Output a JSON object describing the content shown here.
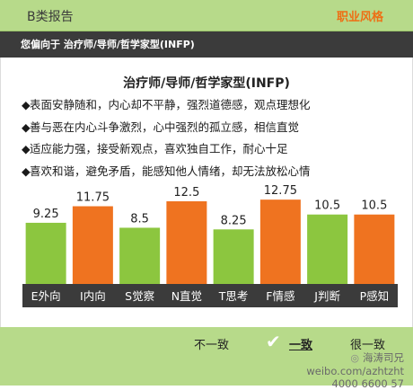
{
  "header": {
    "title": "B类报告",
    "style_link": "职业风格"
  },
  "subheader": {
    "text": "您偏向于 治疗师/导师/哲学家型(INFP)"
  },
  "content": {
    "heading": "治疗师/导师/哲学家型(INFP)",
    "traits": [
      "表面安静随和，内心却不平静，强烈道德感，观点理想化",
      "善与恶在内心斗争激烈，心中强烈的孤立感，相信直觉",
      "适应能力强，接受新观点，喜欢独自工作，耐心十足",
      "喜欢和谐，避免矛盾，能感知他人情绪，却无法放松心情"
    ]
  },
  "chart_data": {
    "type": "bar",
    "categories": [
      "E外向",
      "I内向",
      "S觉察",
      "N直觉",
      "T思考",
      "F情感",
      "J判断",
      "P感知"
    ],
    "values": [
      9.25,
      11.75,
      8.5,
      12.5,
      8.25,
      12.75,
      10.5,
      10.5
    ],
    "value_labels": [
      "9.25",
      "11.75",
      "8.5",
      "12.5",
      "8.25",
      "12.75",
      "10.5",
      "10.5"
    ],
    "ylim": [
      0,
      14
    ],
    "colors": [
      "#8cc63f",
      "#ef7320",
      "#8cc63f",
      "#ef7320",
      "#8cc63f",
      "#ef7320",
      "#8cc63f",
      "#ef7320"
    ],
    "grid": false,
    "legend": "none"
  },
  "footer": {
    "options": [
      "不一致",
      "一致",
      "很一致"
    ],
    "selected": "一致",
    "watermark_line1": "海涛司兄",
    "watermark_line2": "weibo.com/azhtzht",
    "watermark_line3": "4000 6600 57"
  },
  "colors": {
    "green": "#8cc63f",
    "orange": "#ef7320",
    "topbar": "#b7da8a",
    "dark": "#3b3b3b"
  }
}
